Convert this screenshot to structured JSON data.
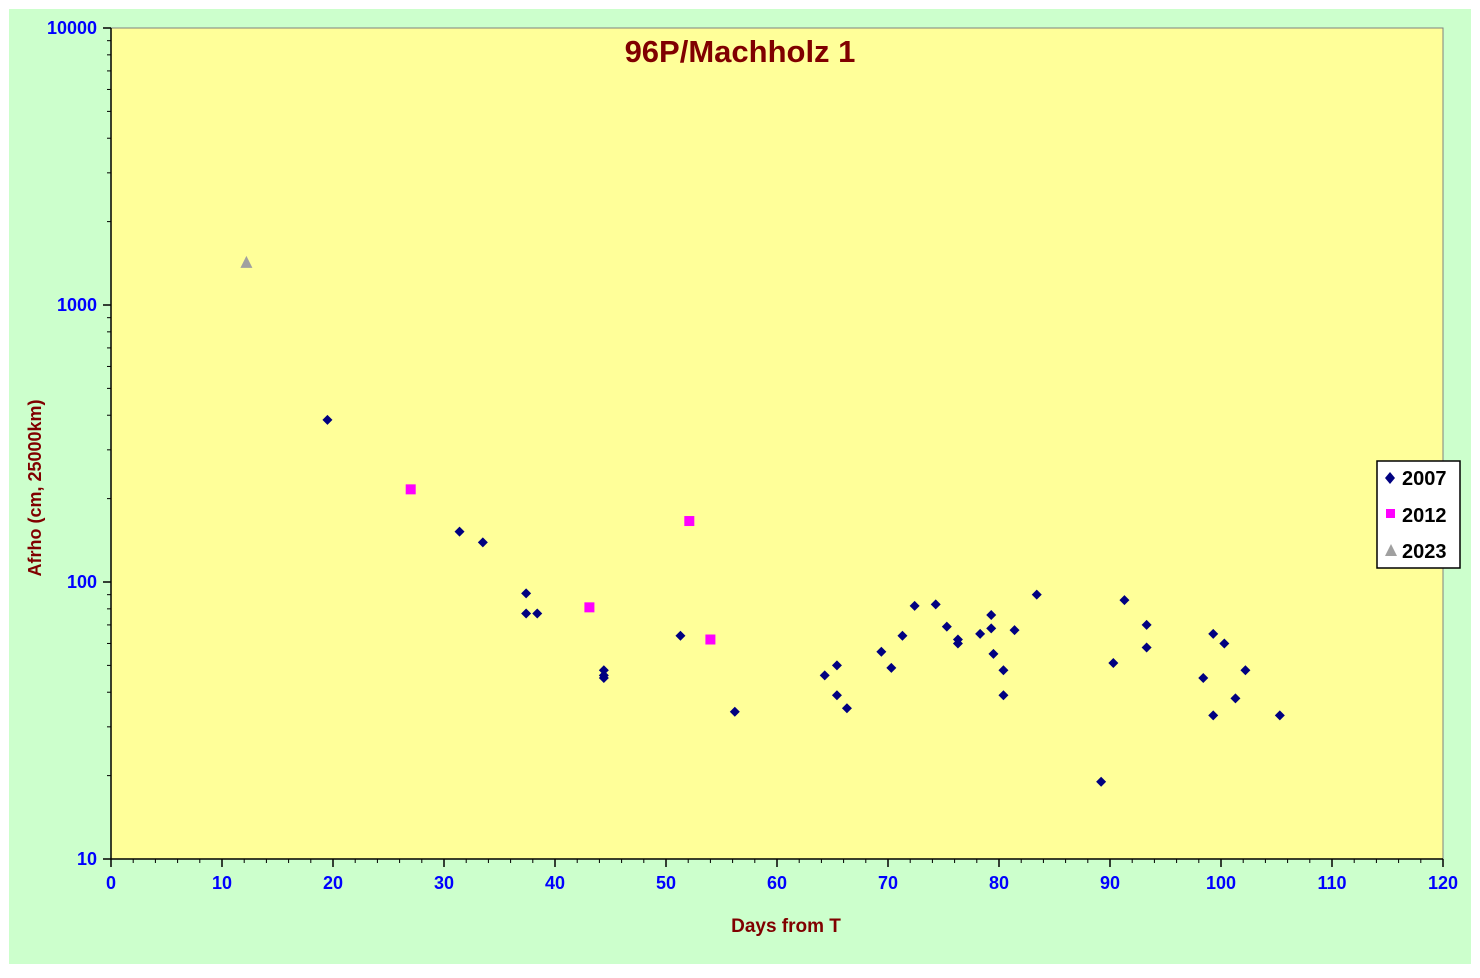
{
  "colors": {
    "outer_background": "#ccffcc",
    "plot_background": "#ffff99",
    "title_color": "#800000",
    "axis_label_color": "#800000",
    "tick_label_color": "#0000ff"
  },
  "chart_data": {
    "type": "scatter",
    "title": "96P/Machholz 1",
    "xlabel": "Days from T",
    "ylabel": "Afrho (cm, 25000km)",
    "xlim": [
      0,
      120
    ],
    "ylim": [
      10,
      10000
    ],
    "yscale": "log",
    "xticks": [
      0,
      10,
      20,
      30,
      40,
      50,
      60,
      70,
      80,
      90,
      100,
      110,
      120
    ],
    "yticks": [
      10,
      100,
      1000,
      10000
    ],
    "grid": false,
    "legend_position": "right",
    "series": [
      {
        "name": "2007",
        "marker": "diamond",
        "color": "#000080",
        "points": [
          [
            19.5,
            385
          ],
          [
            31.4,
            152
          ],
          [
            33.5,
            139
          ],
          [
            37.4,
            91
          ],
          [
            37.4,
            77
          ],
          [
            38.4,
            77
          ],
          [
            44.4,
            48
          ],
          [
            44.4,
            46
          ],
          [
            44.4,
            45
          ],
          [
            51.3,
            64
          ],
          [
            56.2,
            34
          ],
          [
            64.3,
            46
          ],
          [
            65.4,
            50
          ],
          [
            65.4,
            39
          ],
          [
            66.3,
            35
          ],
          [
            69.4,
            56
          ],
          [
            70.3,
            49
          ],
          [
            71.3,
            64
          ],
          [
            72.4,
            82
          ],
          [
            74.3,
            83
          ],
          [
            75.3,
            69
          ],
          [
            76.3,
            62
          ],
          [
            76.3,
            60
          ],
          [
            78.3,
            65
          ],
          [
            79.3,
            76
          ],
          [
            79.3,
            68
          ],
          [
            79.5,
            55
          ],
          [
            80.4,
            48
          ],
          [
            80.4,
            39
          ],
          [
            81.4,
            67
          ],
          [
            83.4,
            90
          ],
          [
            89.2,
            19
          ],
          [
            90.3,
            51
          ],
          [
            91.3,
            86
          ],
          [
            93.3,
            70
          ],
          [
            93.3,
            58
          ],
          [
            98.4,
            45
          ],
          [
            99.3,
            65
          ],
          [
            99.3,
            33
          ],
          [
            100.3,
            60
          ],
          [
            101.3,
            38
          ],
          [
            102.2,
            48
          ],
          [
            105.3,
            33
          ]
        ]
      },
      {
        "name": "2012",
        "marker": "square",
        "color": "#ff00ff",
        "points": [
          [
            27.0,
            216
          ],
          [
            43.1,
            81
          ],
          [
            52.1,
            166
          ],
          [
            54.0,
            62
          ]
        ]
      },
      {
        "name": "2023",
        "marker": "triangle",
        "color": "#a0a0a0",
        "points": [
          [
            12.2,
            1420
          ]
        ]
      }
    ]
  }
}
